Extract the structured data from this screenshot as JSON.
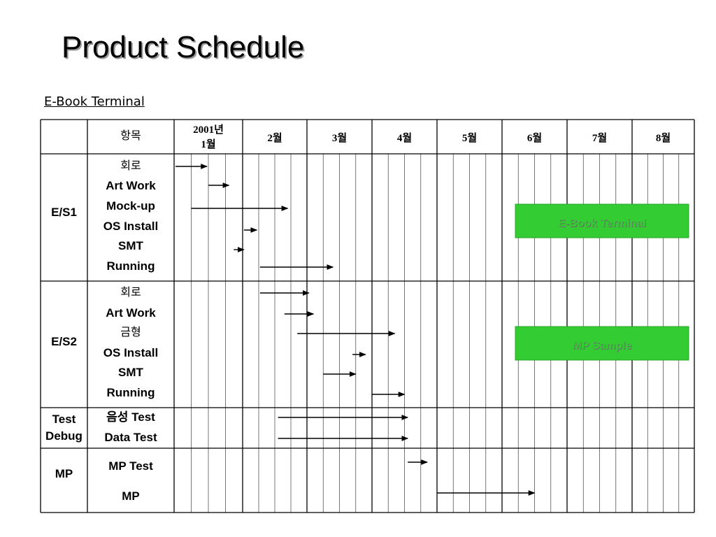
{
  "slide": {
    "title": "Product Schedule",
    "subtitle": "E-Book Terminal"
  },
  "header": {
    "item": "항목",
    "months": [
      "2001년 1월",
      "2월",
      "3월",
      "4월",
      "5월",
      "6월",
      "7월",
      "8월"
    ]
  },
  "groups": [
    {
      "name": "E/S1",
      "tasks": [
        {
          "label": "회로",
          "start": 0.02,
          "end": 0.48
        },
        {
          "label": "Art Work",
          "start": 0.5,
          "end": 0.8
        },
        {
          "label": "Mock-up",
          "start": 0.25,
          "end": 1.7
        },
        {
          "label": "OS Install",
          "start": 1.02,
          "end": 1.22
        },
        {
          "label": "SMT",
          "start": 0.87,
          "end": 1.02
        },
        {
          "label": "Running",
          "start": 1.27,
          "end": 2.4
        }
      ]
    },
    {
      "name": "E/S2",
      "tasks": [
        {
          "label": "회로",
          "start": 1.27,
          "end": 2.03
        },
        {
          "label": "Art Work",
          "start": 1.65,
          "end": 2.1
        },
        {
          "label": "금형",
          "start": 1.85,
          "end": 3.35
        },
        {
          "label": "OS Install",
          "start": 2.7,
          "end": 2.9
        },
        {
          "label": "SMT",
          "start": 2.25,
          "end": 2.75
        },
        {
          "label": "Running",
          "start": 3.0,
          "end": 3.5
        }
      ]
    },
    {
      "name": "Test Debug",
      "tasks": [
        {
          "label": "음성 Test",
          "start": 1.55,
          "end": 3.55
        },
        {
          "label": "Data Test",
          "start": 1.55,
          "end": 3.55
        }
      ]
    },
    {
      "name": "MP",
      "tasks": [
        {
          "label": "MP Test",
          "start": 3.55,
          "end": 3.85
        },
        {
          "label": "MP",
          "start": 4.0,
          "end": 5.5
        }
      ]
    }
  ],
  "boxes": [
    {
      "label": "E-Book Terminal",
      "color": "#33cc33"
    },
    {
      "label": "MP Sample",
      "color": "#33cc33"
    }
  ],
  "colors": {
    "grid": "#000000",
    "arrow": "#000000",
    "title_shadow": "#9a9a9a"
  }
}
